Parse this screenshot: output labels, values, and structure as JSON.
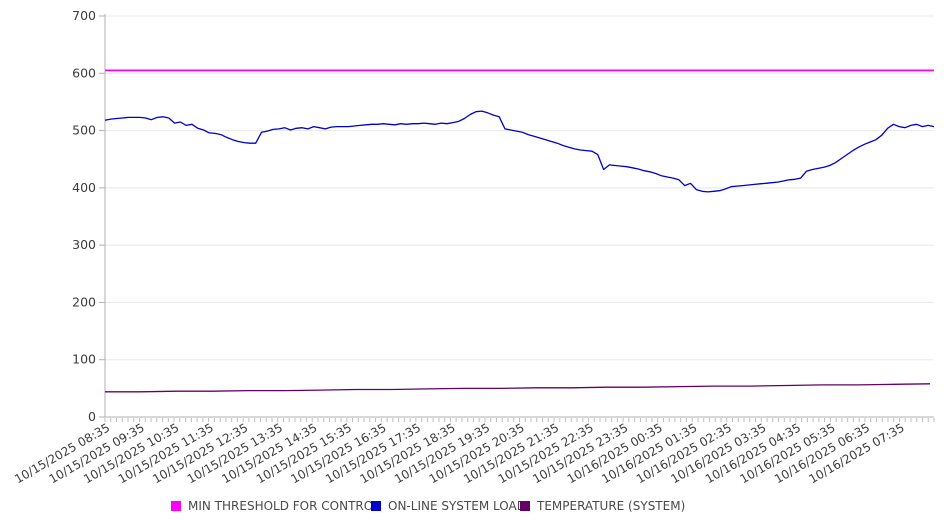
{
  "chart_data": {
    "type": "line",
    "title": "",
    "xlabel": "",
    "ylabel": "",
    "ylim": [
      0,
      700
    ],
    "yticks": [
      0,
      100,
      200,
      300,
      400,
      500,
      600,
      700
    ],
    "grid": true,
    "legend_position": "bottom",
    "x_labels": [
      "10/15/2025 08:35",
      "10/15/2025 09:35",
      "10/15/2025 10:35",
      "10/15/2025 11:35",
      "10/15/2025 12:35",
      "10/15/2025 13:35",
      "10/15/2025 14:35",
      "10/15/2025 15:35",
      "10/15/2025 16:35",
      "10/15/2025 17:35",
      "10/15/2025 18:35",
      "10/15/2025 19:35",
      "10/15/2025 20:35",
      "10/15/2025 21:35",
      "10/15/2025 22:35",
      "10/15/2025 23:35",
      "10/16/2025 00:35",
      "10/16/2025 01:35",
      "10/16/2025 02:35",
      "10/16/2025 03:35",
      "10/16/2025 04:35",
      "10/16/2025 05:35",
      "10/16/2025 06:35",
      "10/16/2025 07:35"
    ],
    "points_per_label": 6,
    "series": [
      {
        "name": "MIN THRESHOLD FOR CONTROL",
        "color": "#ff00ff",
        "role": "threshold",
        "values": [
          605,
          605
        ]
      },
      {
        "name": "ON-LINE SYSTEM LOAD",
        "color": "#0000cc",
        "role": "data",
        "values": [
          518,
          520,
          521,
          522,
          523,
          523,
          523,
          522,
          519,
          523,
          524,
          522,
          513,
          515,
          509,
          511,
          504,
          501,
          496,
          495,
          493,
          488,
          484,
          481,
          479,
          478,
          478,
          497,
          499,
          502,
          503,
          505,
          501,
          504,
          505,
          503,
          507,
          505,
          503,
          506,
          507,
          507,
          507,
          508,
          509,
          510,
          511,
          511,
          512,
          511,
          510,
          512,
          511,
          512,
          512,
          513,
          512,
          511,
          513,
          512,
          514,
          516,
          521,
          528,
          533,
          534,
          531,
          527,
          524,
          503,
          501,
          499,
          497,
          493,
          490,
          487,
          484,
          481,
          478,
          474,
          471,
          468,
          466,
          465,
          464,
          458,
          432,
          440,
          439,
          438,
          437,
          435,
          433,
          430,
          428,
          425,
          421,
          419,
          417,
          414,
          404,
          408,
          397,
          394,
          393,
          394,
          395,
          398,
          402,
          403,
          404,
          405,
          406,
          407,
          408,
          409,
          410,
          412,
          414,
          415,
          417,
          429,
          432,
          434,
          436,
          439,
          444,
          451,
          458,
          465,
          471,
          476,
          480,
          484,
          492,
          504,
          511,
          507,
          505,
          509,
          511,
          507,
          509,
          507
        ]
      },
      {
        "name": "TEMPERATURE (SYSTEM)",
        "color": "#660066",
        "role": "data",
        "values": [
          44,
          44,
          45,
          45,
          46,
          46,
          47,
          48,
          48,
          49,
          50,
          50,
          51,
          51,
          52,
          52,
          53,
          54,
          54,
          55,
          56,
          56,
          57,
          58
        ]
      }
    ]
  },
  "legend": {
    "items": [
      {
        "label": "MIN THRESHOLD FOR CONTROL",
        "color": "#ff00ff"
      },
      {
        "label": "ON-LINE SYSTEM LOAD",
        "color": "#0000cc"
      },
      {
        "label": "TEMPERATURE (SYSTEM)",
        "color": "#660066"
      }
    ]
  }
}
